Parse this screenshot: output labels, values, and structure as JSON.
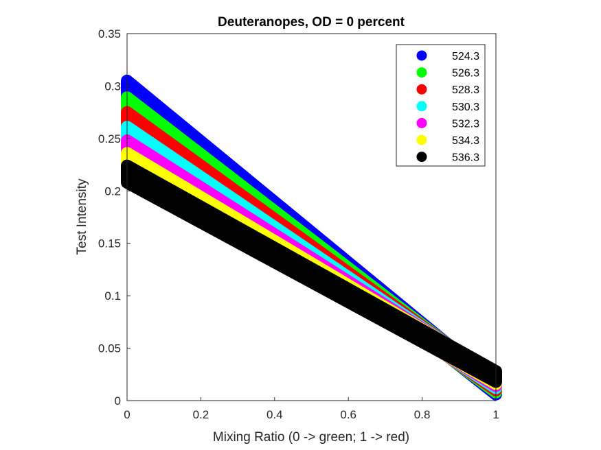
{
  "chart_data": {
    "type": "scatter",
    "title": "Deuteranopes, OD = 0 percent",
    "xlabel": "Mixing Ratio (0 -> green; 1 -> red)",
    "ylabel": "Test Intensity",
    "xlim": [
      0,
      1
    ],
    "ylim": [
      0,
      0.35
    ],
    "xticks": [
      0,
      0.2,
      0.4,
      0.6,
      0.8,
      1
    ],
    "xtick_labels": [
      "0",
      "0.2",
      "0.4",
      "0.6",
      "0.8",
      "1"
    ],
    "yticks": [
      0,
      0.05,
      0.1,
      0.15,
      0.2,
      0.25,
      0.3,
      0.35
    ],
    "ytick_labels": [
      "0",
      "0.05",
      "0.1",
      "0.15",
      "0.2",
      "0.25",
      "0.3",
      "0.35"
    ],
    "grid": false,
    "legend_position": "top-right",
    "series": [
      {
        "name": "524.3",
        "color": "#0000ff",
        "x": [
          0,
          1
        ],
        "y_top": [
          0.305,
          0.016
        ],
        "y_bottom": [
          0.285,
          0.006
        ]
      },
      {
        "name": "526.3",
        "color": "#00ff00",
        "x": [
          0,
          1
        ],
        "y_top": [
          0.289,
          0.018
        ],
        "y_bottom": [
          0.27,
          0.008
        ]
      },
      {
        "name": "528.3",
        "color": "#ff0000",
        "x": [
          0,
          1
        ],
        "y_top": [
          0.275,
          0.02
        ],
        "y_bottom": [
          0.256,
          0.01
        ]
      },
      {
        "name": "530.3",
        "color": "#00ffff",
        "x": [
          0,
          1
        ],
        "y_top": [
          0.261,
          0.022
        ],
        "y_bottom": [
          0.243,
          0.012
        ]
      },
      {
        "name": "532.3",
        "color": "#ff00ff",
        "x": [
          0,
          1
        ],
        "y_top": [
          0.248,
          0.024
        ],
        "y_bottom": [
          0.231,
          0.014
        ]
      },
      {
        "name": "534.3",
        "color": "#ffff00",
        "x": [
          0,
          1
        ],
        "y_top": [
          0.236,
          0.026
        ],
        "y_bottom": [
          0.219,
          0.016
        ]
      },
      {
        "name": "536.3",
        "color": "#000000",
        "x": [
          0,
          1
        ],
        "y_top": [
          0.224,
          0.028
        ],
        "y_bottom": [
          0.208,
          0.018
        ]
      }
    ]
  }
}
